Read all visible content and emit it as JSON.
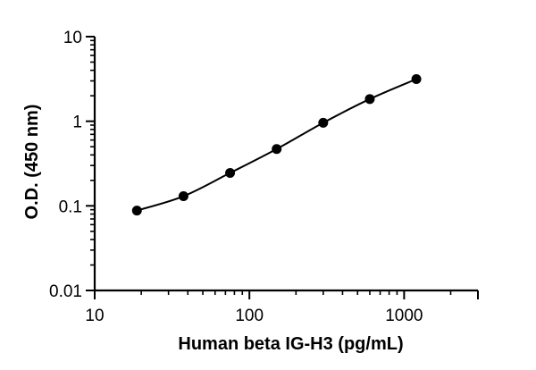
{
  "chart_data": {
    "type": "scatter",
    "title": "",
    "xlabel": "Human beta IG-H3 (pg/mL)",
    "ylabel": "O.D. (450 nm)",
    "xscale": "log",
    "yscale": "log",
    "xlim": [
      10,
      3000
    ],
    "ylim": [
      0.01,
      10
    ],
    "x_ticks": [
      10,
      100,
      1000
    ],
    "x_tick_labels": [
      "10",
      "100",
      "1000"
    ],
    "y_ticks": [
      0.01,
      0.1,
      1,
      10
    ],
    "y_tick_labels": [
      "0.01",
      "0.1",
      "1",
      "10"
    ],
    "grid": false,
    "legend": "none",
    "series": [
      {
        "x": [
          18.75,
          37.5,
          75,
          150,
          300,
          600,
          1200
        ],
        "y": [
          0.088,
          0.13,
          0.245,
          0.47,
          0.96,
          1.83,
          3.15
        ],
        "fit_curve": "smooth",
        "color": "#000000"
      }
    ]
  }
}
